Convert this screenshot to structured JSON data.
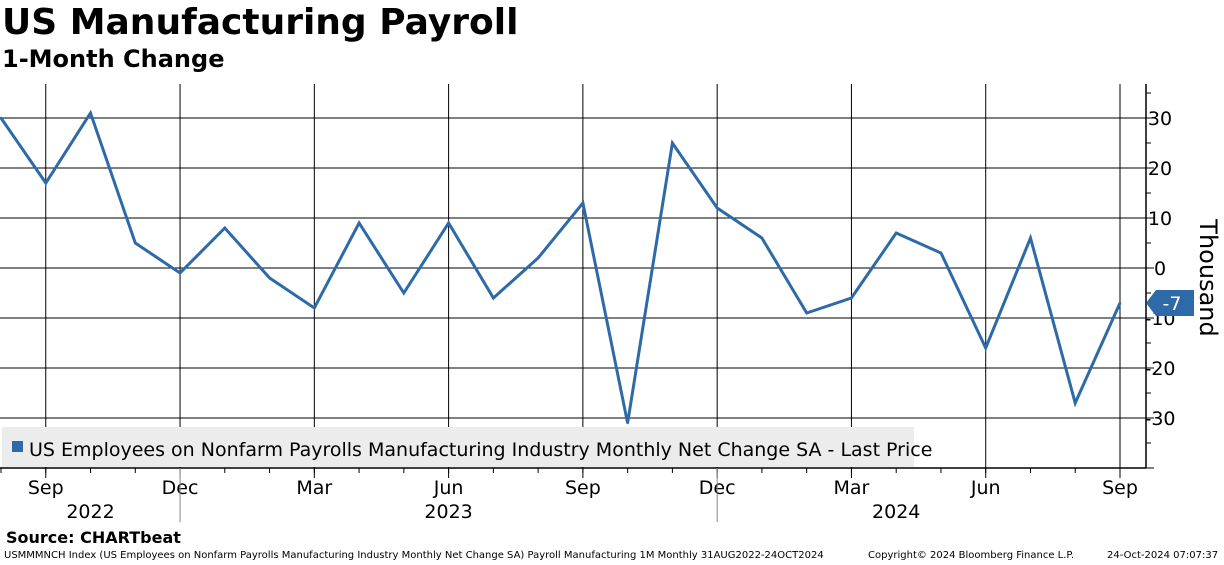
{
  "header": {
    "title": "US Manufacturing Payroll",
    "subtitle": "1-Month Change"
  },
  "chart_data": {
    "type": "line",
    "title": "US Manufacturing Payroll",
    "subtitle": "1-Month Change",
    "ylabel": "Thousand",
    "ylim": [
      -40,
      37
    ],
    "yticks": [
      -30,
      -20,
      -10,
      0,
      10,
      20,
      30
    ],
    "grid": true,
    "x": [
      "2022-08",
      "2022-09",
      "2022-10",
      "2022-11",
      "2022-12",
      "2023-01",
      "2023-02",
      "2023-03",
      "2023-04",
      "2023-05",
      "2023-06",
      "2023-07",
      "2023-08",
      "2023-09",
      "2023-10",
      "2023-11",
      "2023-12",
      "2024-01",
      "2024-02",
      "2024-03",
      "2024-04",
      "2024-05",
      "2024-06",
      "2024-07",
      "2024-08",
      "2024-09"
    ],
    "x_tick_labels": [
      {
        "label": "Sep",
        "at": "2022-09"
      },
      {
        "label": "Dec",
        "at": "2022-12"
      },
      {
        "label": "Mar",
        "at": "2023-03"
      },
      {
        "label": "Jun",
        "at": "2023-06"
      },
      {
        "label": "Sep",
        "at": "2023-09"
      },
      {
        "label": "Dec",
        "at": "2023-12"
      },
      {
        "label": "Mar",
        "at": "2024-03"
      },
      {
        "label": "Jun",
        "at": "2024-06"
      },
      {
        "label": "Sep",
        "at": "2024-09"
      }
    ],
    "year_labels": [
      {
        "label": "2022",
        "at": "2022-10"
      },
      {
        "label": "2023",
        "at": "2023-06"
      },
      {
        "label": "2024",
        "at": "2024-04"
      }
    ],
    "series": [
      {
        "name": "US Employees on Nonfarm Payrolls Manufacturing Industry Monthly Net Change SA - Last Price",
        "color": "#2e6aa8",
        "values": [
          30,
          17,
          31,
          5,
          -1,
          8,
          -2,
          -8,
          9,
          -5,
          9,
          -6,
          2,
          13,
          -31,
          25,
          12,
          6,
          -9,
          -6,
          7,
          3,
          -16,
          6,
          -27,
          -7
        ]
      }
    ],
    "last_value_label": "-7",
    "legend_position": "bottom-left"
  },
  "footer": {
    "source": "Source: CHARTbeat",
    "index_note": "USMMMNCH Index (US Employees on Nonfarm Payrolls Manufacturing Industry Monthly Net Change SA) Payroll Manufacturing 1M  Monthly 31AUG2022-24OCT2024",
    "copyright": "Copyright© 2024 Bloomberg Finance L.P.",
    "timestamp": "24-Oct-2024 07:07:37"
  },
  "colors": {
    "line": "#2e6aa8",
    "legend_bg": "#ececec",
    "grid": "#000000"
  }
}
